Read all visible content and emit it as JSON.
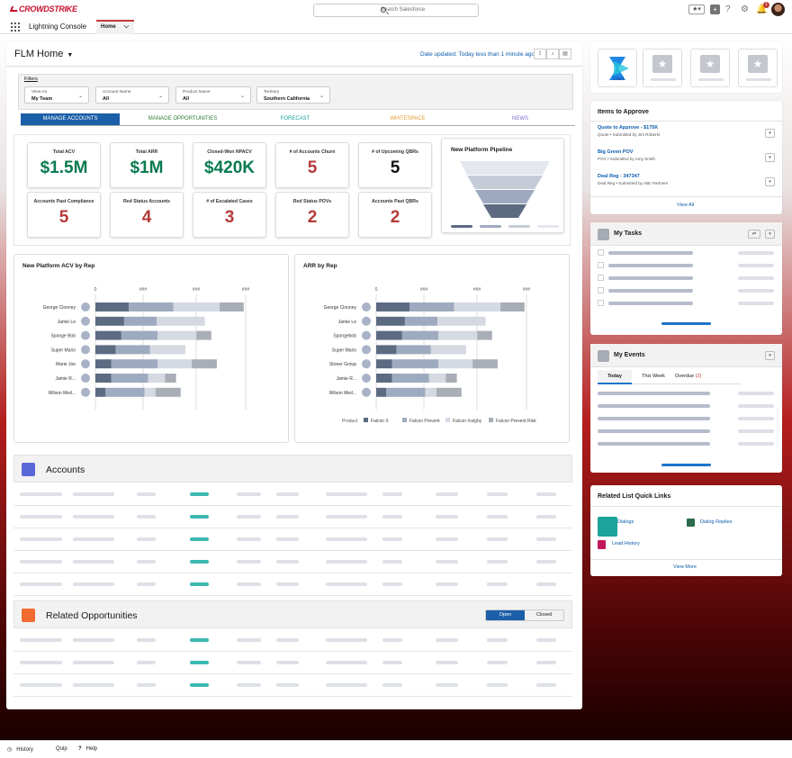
{
  "header": {
    "logo": "CROWDSTRIKE",
    "search_placeholder": "Search Salesforce",
    "app_name": "Lightning Console",
    "home_tab": "Home",
    "notif_count": "1"
  },
  "page": {
    "title": "FLM Home",
    "date_updated": "Date updated: Today less than 1 minute ago"
  },
  "filters": {
    "label": "Filters",
    "items": [
      {
        "key": "View As",
        "value": "My Team"
      },
      {
        "key": "Account Name",
        "value": "All"
      },
      {
        "key": "Product Name",
        "value": "All"
      },
      {
        "key": "Territory",
        "value": "Southern California"
      }
    ]
  },
  "tabs": [
    "MANAGE ACCOUNTS",
    "MANAGE OPPORTUNITIES",
    "FORECAST",
    "WHITESPACE",
    "NEWS"
  ],
  "tab_colors": [
    "#ffffff",
    "#2e7d32",
    "#1aa3a3",
    "#e0a030",
    "#7a6fd1"
  ],
  "kpis": [
    {
      "title": "Total ACV",
      "value": "$1.5M",
      "color": "g"
    },
    {
      "title": "Total ARR",
      "value": "$1M",
      "color": "g"
    },
    {
      "title": "Closed-Won NPACV",
      "value": "$420K",
      "color": "g"
    },
    {
      "title": "# of Accounts Churn",
      "value": "5",
      "color": "r"
    },
    {
      "title": "# of Upcoming QBRs",
      "value": "5",
      "color": "b"
    },
    {
      "title": "Accounts Past Compliance",
      "value": "5",
      "color": "r"
    },
    {
      "title": "Red Status Accounts",
      "value": "4",
      "color": "r"
    },
    {
      "title": "# of Escalated Cases",
      "value": "3",
      "color": "r"
    },
    {
      "title": "Red Status POVs",
      "value": "2",
      "color": "r"
    },
    {
      "title": "Accounts Past QBRs",
      "value": "2",
      "color": "r"
    }
  ],
  "pipeline_title": "New Platform Pipeline",
  "chart_data": [
    {
      "type": "bar",
      "title": "New Platform ACV by Rep",
      "categories": [
        "George Clooney",
        "Jamie Le",
        "Sponge Bob",
        "Super Mario",
        "Marie Joe",
        "Jamie R...",
        "Wilson Med..."
      ],
      "tick_labels": [
        "0",
        "###",
        "###",
        "###"
      ],
      "series": [
        {
          "values": [
            36,
            31,
            28,
            22,
            17,
            17,
            11
          ]
        },
        {
          "values": [
            48,
            35,
            39,
            37,
            50,
            40,
            42
          ]
        },
        {
          "values": [
            50,
            52,
            42,
            38,
            37,
            18,
            12
          ]
        },
        {
          "values": [
            26,
            0,
            16,
            0,
            27,
            12,
            27
          ]
        }
      ]
    },
    {
      "type": "bar",
      "title": "ARR by Rep",
      "categories": [
        "George Clooney",
        "Jamie Le",
        "Spongebob",
        "Super Mario",
        "Stoner Group",
        "Jamie R...",
        "Wilson Med..."
      ],
      "tick_labels": [
        "0",
        "###",
        "###",
        "###"
      ],
      "legend_label": "Product",
      "legend": [
        "Falcon X",
        "Falcon Prevent",
        "Falcon Insighy",
        "Falcon Prevent Risk"
      ],
      "series": [
        {
          "name": "Falcon X",
          "values": [
            36,
            31,
            28,
            22,
            17,
            17,
            11
          ]
        },
        {
          "name": "Falcon Prevent",
          "values": [
            48,
            35,
            39,
            37,
            50,
            40,
            42
          ]
        },
        {
          "name": "Falcon Insighy",
          "values": [
            50,
            52,
            42,
            38,
            37,
            18,
            12
          ]
        },
        {
          "name": "Falcon Prevent Risk",
          "values": [
            26,
            0,
            16,
            0,
            27,
            12,
            27
          ]
        }
      ]
    }
  ],
  "series_colors": [
    "#5c6b82",
    "#9eaabf",
    "#d4d9e2",
    "#a8adb6"
  ],
  "accounts": {
    "title": "Accounts"
  },
  "opps": {
    "title": "Related Opportunities",
    "open": "Open",
    "closed": "Closed"
  },
  "clari": {
    "label": "Clari"
  },
  "approve": {
    "title": "Items to Approve",
    "items": [
      {
        "title": "Quote to Approve - $175K",
        "sub": "Quote • Submitted by Jim Roberts"
      },
      {
        "title": "Big Green POV",
        "sub": "POV • Submitted by Amy Smith"
      },
      {
        "title": "Deal Reg - 347347",
        "sub": "Deal Reg • Submitted by ABc Partners"
      }
    ],
    "view_all": "View All"
  },
  "tasks": {
    "title": "My Tasks"
  },
  "events": {
    "title": "My Events",
    "tabs": [
      "Today",
      "This Week",
      "Overdue"
    ],
    "overdue_count": "(2)"
  },
  "quicklinks": {
    "title": "Related List Quick Links",
    "items": [
      "Dialogs",
      "Dialog Replies",
      "Lead History"
    ],
    "view_more": "View More"
  },
  "footer": {
    "history": "History",
    "quip": "Quip",
    "help": "Help"
  }
}
